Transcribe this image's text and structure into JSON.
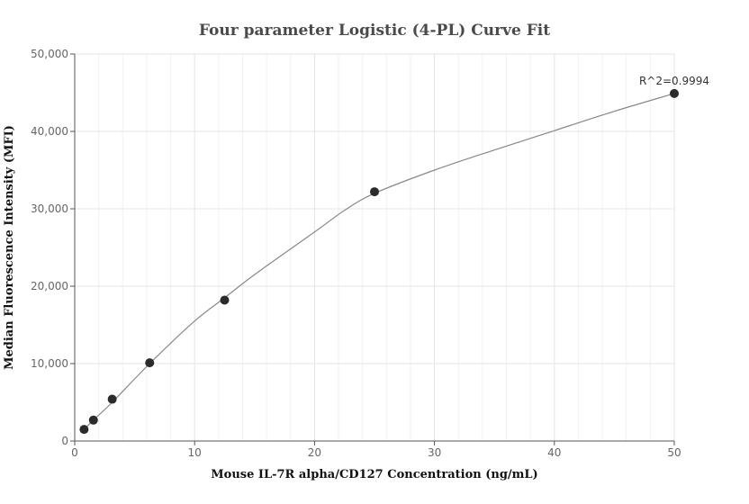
{
  "chart_data": {
    "type": "scatter",
    "title": "Four parameter Logistic (4-PL) Curve Fit",
    "xlabel": "Mouse IL-7R alpha/CD127 Concentration (ng/mL)",
    "ylabel": "Median Fluorescence Intensity (MFI)",
    "xlim": [
      0,
      50
    ],
    "ylim": [
      0,
      50000
    ],
    "x_ticks": [
      0,
      10,
      20,
      30,
      40,
      50
    ],
    "y_ticks": [
      0,
      10000,
      20000,
      30000,
      40000,
      50000
    ],
    "x_tick_labels": [
      "0",
      "10",
      "20",
      "30",
      "40",
      "50"
    ],
    "y_tick_labels": [
      "0",
      "10,000",
      "20,000",
      "30,000",
      "40,000",
      "50,000"
    ],
    "grid": true,
    "points": {
      "x": [
        0.78,
        1.56,
        3.125,
        6.25,
        12.5,
        25,
        50
      ],
      "y": [
        1500,
        2700,
        5400,
        10100,
        18200,
        32200,
        44900
      ]
    },
    "fit_curve": {
      "x": [
        0.78,
        1.56,
        3.125,
        6.25,
        10,
        12.5,
        15,
        20,
        22.5,
        25,
        30,
        35,
        40,
        45,
        50
      ],
      "y": [
        1500,
        2700,
        5000,
        10000,
        15500,
        18500,
        21500,
        27000,
        29800,
        32000,
        35000,
        37600,
        40100,
        42600,
        44900
      ]
    },
    "annotation": {
      "text": "R^2=0.9994",
      "x": 50,
      "y": 44900
    },
    "colors": {
      "point": "#2b2b2b",
      "curve": "#888888",
      "grid": "#e6e6e6",
      "axis": "#555555"
    }
  }
}
